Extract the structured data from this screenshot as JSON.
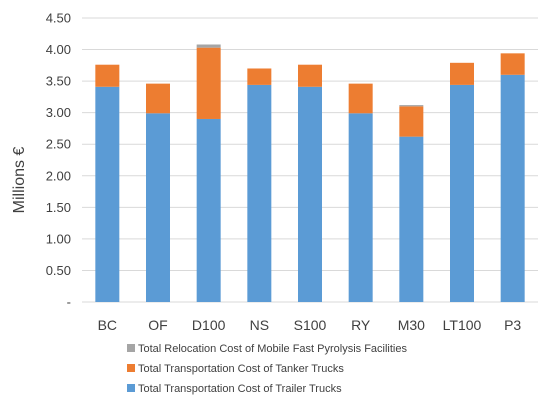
{
  "chart_data": {
    "type": "bar",
    "stacked": true,
    "ylabel": "Millions €",
    "ylim": [
      0,
      4.5
    ],
    "grid": true,
    "legend_position": "bottom",
    "y_ticks": [
      "-",
      "0.50",
      "1.00",
      "1.50",
      "2.00",
      "2.50",
      "3.00",
      "3.50",
      "4.00",
      "4.50"
    ],
    "y_tick_values": [
      0,
      0.5,
      1.0,
      1.5,
      2.0,
      2.5,
      3.0,
      3.5,
      4.0,
      4.5
    ],
    "categories": [
      "BC",
      "OF",
      "D100",
      "NS",
      "S100",
      "RY",
      "M30",
      "LT100",
      "P3"
    ],
    "series": [
      {
        "name": "Total Transportation Cost of Trailer Trucks",
        "color": "#5b9bd5",
        "values": [
          3.41,
          2.99,
          2.9,
          3.44,
          3.41,
          2.99,
          2.62,
          3.44,
          3.6
        ]
      },
      {
        "name": "Total Transportation Cost of Tanker Trucks",
        "color": "#ed7d31",
        "values": [
          0.35,
          0.47,
          1.13,
          0.26,
          0.35,
          0.47,
          0.48,
          0.35,
          0.34
        ]
      },
      {
        "name": "Total Relocation Cost of Mobile Fast Pyrolysis Facilities",
        "color": "#a5a5a5",
        "values": [
          0.0,
          0.0,
          0.05,
          0.0,
          0.0,
          0.0,
          0.02,
          0.0,
          0.0
        ]
      }
    ],
    "legend_order": [
      2,
      1,
      0
    ]
  }
}
